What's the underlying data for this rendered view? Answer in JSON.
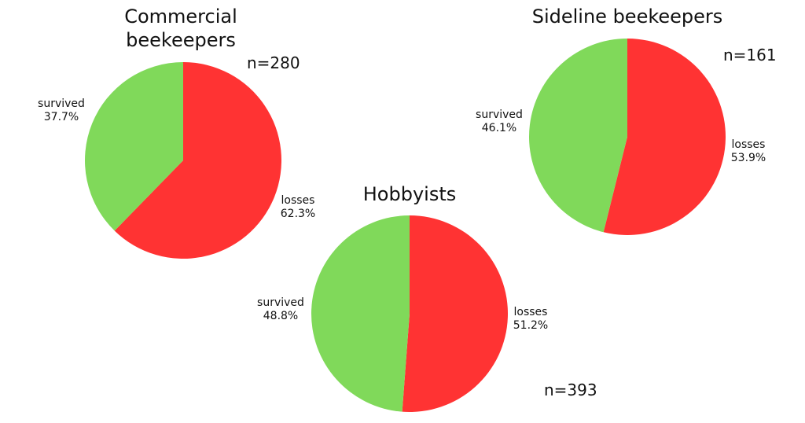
{
  "chart_data": [
    {
      "type": "pie",
      "title": "Commercial\nbeekeepers",
      "n_label": "n=280",
      "slices": [
        {
          "label": "losses",
          "pct_label": "62.3%",
          "value": 62.3,
          "color": "#ff3333"
        },
        {
          "label": "survived",
          "pct_label": "37.7%",
          "value": 37.7,
          "color": "#80d95a"
        }
      ]
    },
    {
      "type": "pie",
      "title": "Hobbyists",
      "n_label": "n=393",
      "slices": [
        {
          "label": "losses",
          "pct_label": "51.2%",
          "value": 51.2,
          "color": "#ff3333"
        },
        {
          "label": "survived",
          "pct_label": "48.8%",
          "value": 48.8,
          "color": "#80d95a"
        }
      ]
    },
    {
      "type": "pie",
      "title": "Sideline beekeepers",
      "n_label": "n=161",
      "slices": [
        {
          "label": "losses",
          "pct_label": "53.9%",
          "value": 53.9,
          "color": "#ff3333"
        },
        {
          "label": "survived",
          "pct_label": "46.1%",
          "value": 46.1,
          "color": "#80d95a"
        }
      ]
    }
  ]
}
